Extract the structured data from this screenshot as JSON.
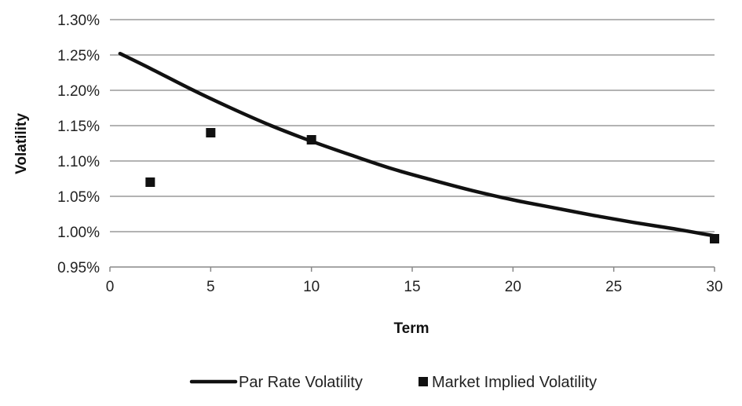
{
  "chart_data": {
    "type": "line",
    "xlabel": "Term",
    "ylabel": "Volatility",
    "xlim": [
      0,
      30
    ],
    "ylim": [
      0.95,
      1.3
    ],
    "x_ticks": [
      0,
      5,
      10,
      15,
      20,
      25,
      30
    ],
    "y_ticks": [
      "1.30%",
      "1.25%",
      "1.20%",
      "1.15%",
      "1.10%",
      "1.05%",
      "1.00%",
      "0.95%"
    ],
    "y_tick_values": [
      1.3,
      1.25,
      1.2,
      1.15,
      1.1,
      1.05,
      1.0,
      0.95
    ],
    "grid": "horizontal",
    "legend_position": "bottom",
    "series": [
      {
        "name": "Par Rate Volatility",
        "kind": "line",
        "color": "#111111",
        "x": [
          0.5,
          2,
          4,
          6,
          8,
          10,
          12,
          14,
          16,
          18,
          20,
          22,
          24,
          26,
          28,
          30
        ],
        "y": [
          1.252,
          1.231,
          1.202,
          1.175,
          1.15,
          1.128,
          1.108,
          1.089,
          1.073,
          1.058,
          1.045,
          1.034,
          1.023,
          1.013,
          1.004,
          0.994
        ]
      },
      {
        "name": "Market Implied Volatility",
        "kind": "scatter",
        "marker": "square",
        "color": "#111111",
        "x": [
          2,
          5,
          10,
          30
        ],
        "y": [
          1.07,
          1.14,
          1.13,
          0.99
        ]
      }
    ]
  }
}
